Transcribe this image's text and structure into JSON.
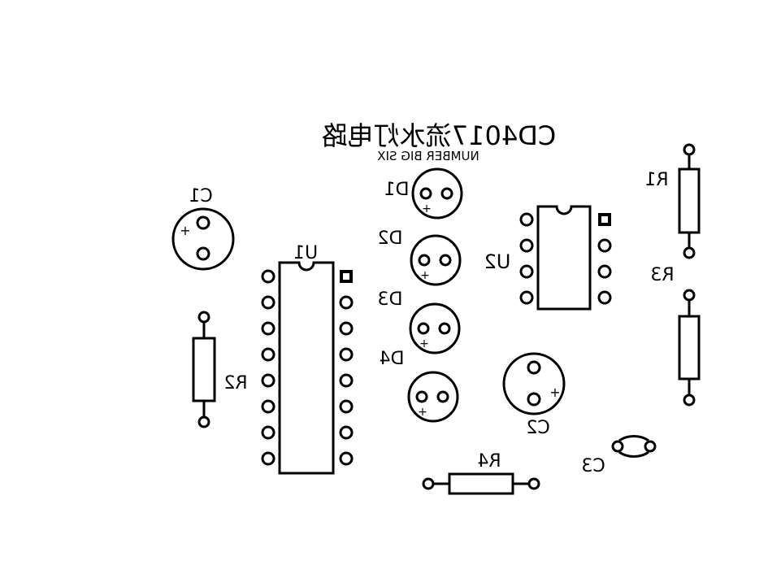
{
  "title": "CD4017流水灯电路",
  "subtitle": "NUMBER BIG SIX",
  "labels": {
    "c1": "C1",
    "c2": "C2",
    "c3": "C3",
    "d1": "D1",
    "d2": "D2",
    "d3": "D3",
    "d4": "D4",
    "u1": "U1",
    "u2": "U2",
    "r1": "R1",
    "r2": "R2",
    "r3": "R3",
    "r4": "R4",
    "plus": "+"
  }
}
